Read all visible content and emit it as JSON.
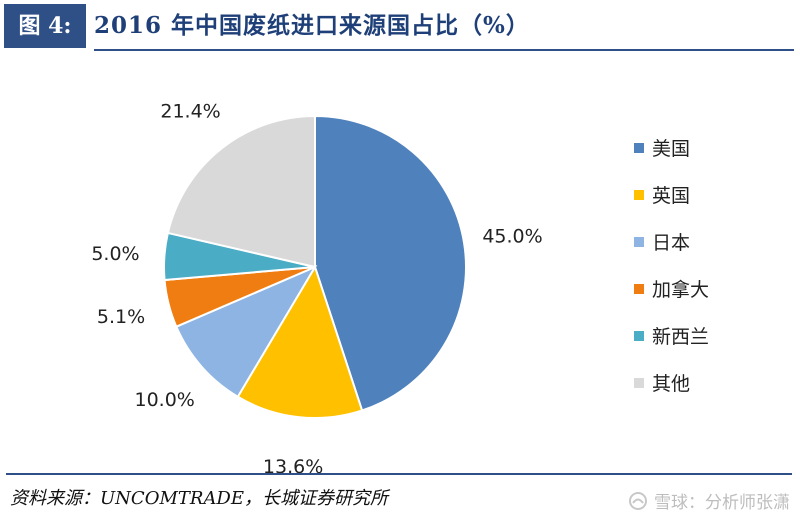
{
  "header": {
    "figure_tag": "图 4:",
    "title": "2016 年中国废纸进口来源国占比（%）"
  },
  "chart_data": {
    "type": "pie",
    "title": "2016 年中国废纸进口来源国占比（%）",
    "slices": [
      {
        "name": "美国",
        "value": 45.0,
        "label": "45.0%",
        "color": "#4f81bd"
      },
      {
        "name": "英国",
        "value": 13.6,
        "label": "13.6%",
        "color": "#ffc000"
      },
      {
        "name": "日本",
        "value": 10.0,
        "label": "10.0%",
        "color": "#8eb4e3"
      },
      {
        "name": "加拿大",
        "value": 5.1,
        "label": "5.1%",
        "color": "#f07d11"
      },
      {
        "name": "新西兰",
        "value": 5.0,
        "label": "5.0%",
        "color": "#4bacc6"
      },
      {
        "name": "其他",
        "value": 21.4,
        "label": "21.4%",
        "color": "#d9d9d9"
      }
    ],
    "legend_position": "right"
  },
  "footer": {
    "source": "资料来源：UNCOMTRADE，长城证券研究所",
    "watermark": "雪球：分析师张潇"
  }
}
